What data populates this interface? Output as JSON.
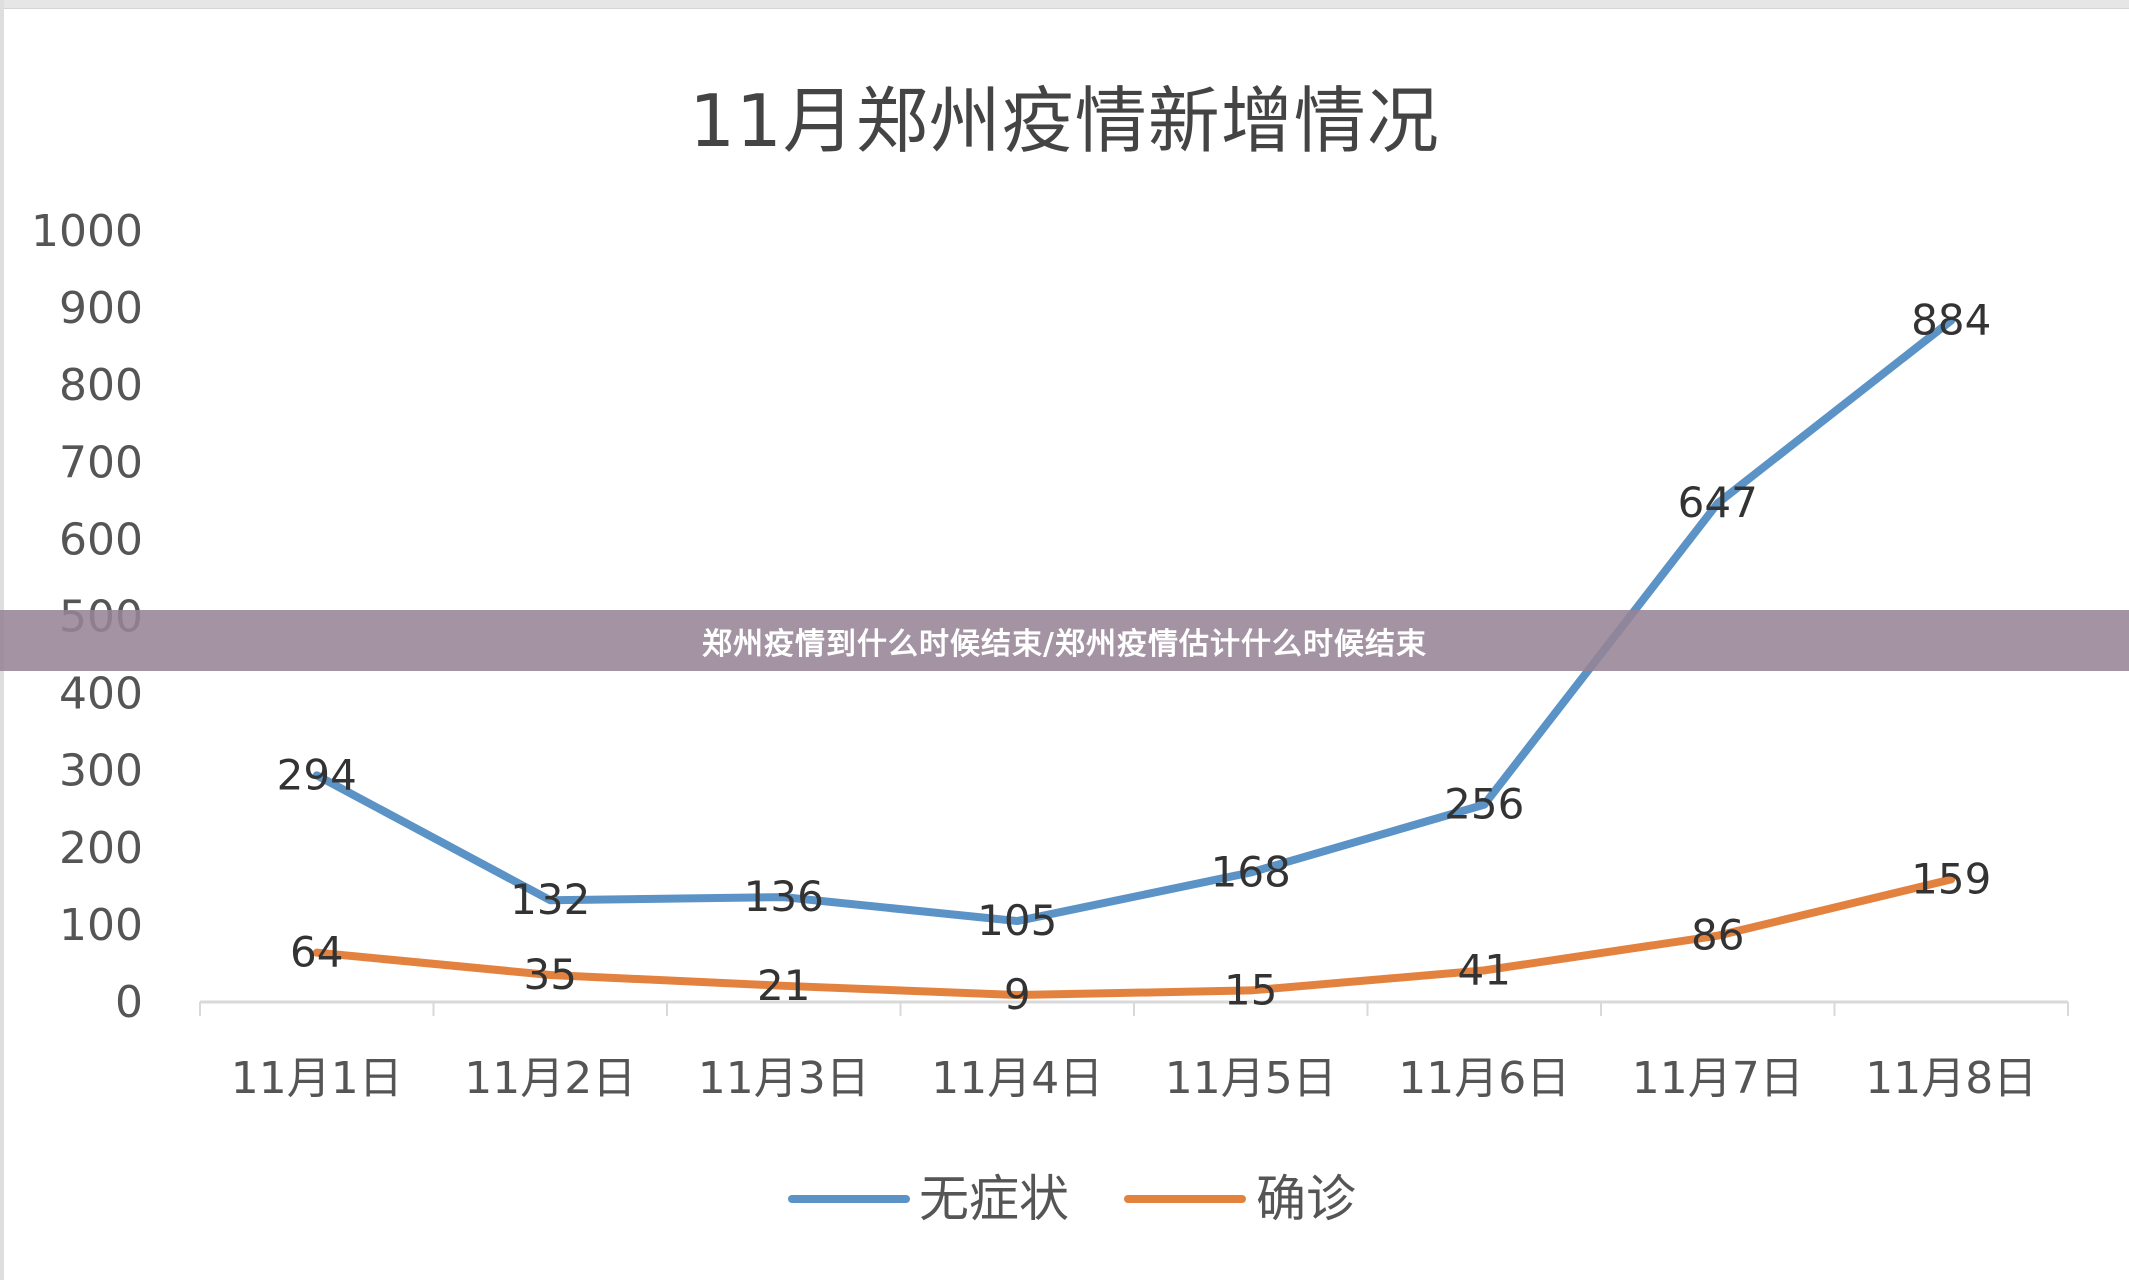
{
  "banner": {
    "text": "郑州疫情到什么时候结束/郑州疫情估计什么时候结束"
  },
  "colors": {
    "asymptomatic": "#5b93c7",
    "confirmed": "#e3823f",
    "axis": "#d9d9d9",
    "banner": "#9a8a9a"
  },
  "chart_data": {
    "type": "line",
    "title": "11月郑州疫情新增情况",
    "xlabel": "",
    "ylabel": "",
    "categories": [
      "11月1日",
      "11月2日",
      "11月3日",
      "11月4日",
      "11月5日",
      "11月6日",
      "11月7日",
      "11月8日"
    ],
    "series": [
      {
        "name": "无症状",
        "color": "#5b93c7",
        "values": [
          294,
          132,
          136,
          105,
          168,
          256,
          647,
          884
        ]
      },
      {
        "name": "确诊",
        "color": "#e3823f",
        "values": [
          64,
          35,
          21,
          9,
          15,
          41,
          86,
          159
        ]
      }
    ],
    "yticks": [
      "0",
      "100",
      "200",
      "300",
      "400",
      "500",
      "600",
      "700",
      "800",
      "900",
      "1000"
    ],
    "ylim": [
      0,
      1000
    ],
    "grid": false,
    "data_labels": true,
    "legend_position": "bottom"
  }
}
